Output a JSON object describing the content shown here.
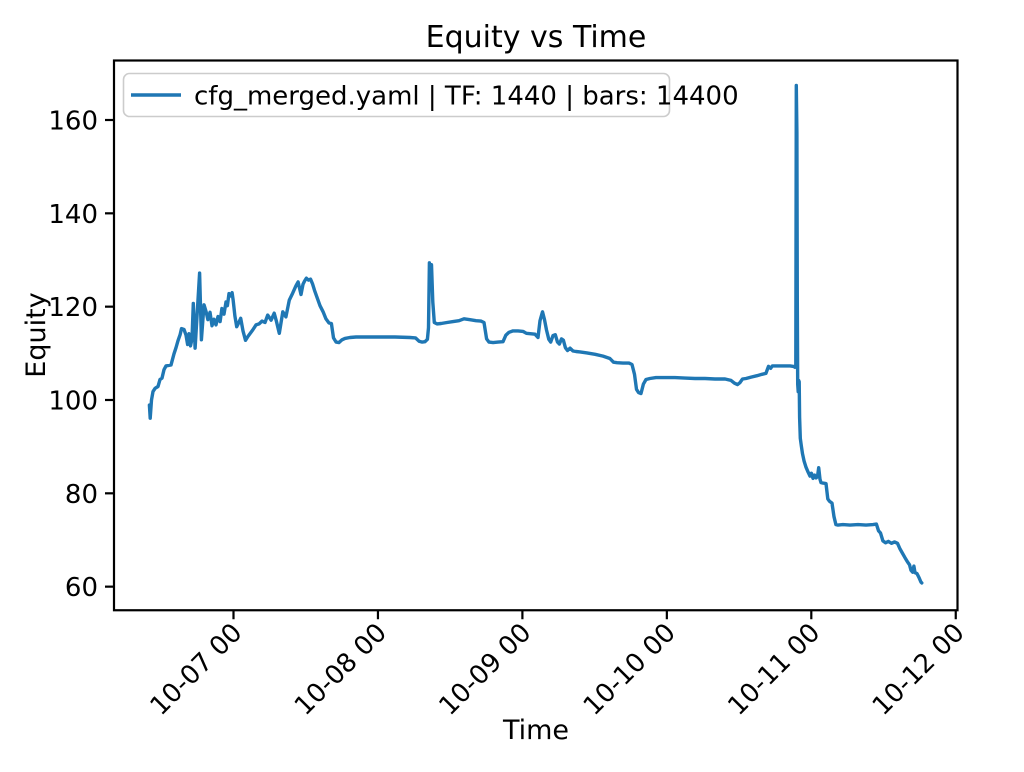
{
  "chart_data": {
    "type": "line",
    "title": "Equity vs Time",
    "xlabel": "Time",
    "ylabel": "Equity",
    "grid": false,
    "legend_position": "upper left",
    "line_color": "#1f77b4",
    "x_axis": {
      "unit": "days (1.0 = 10-07 00:00)",
      "tick_values": [
        1,
        2,
        3,
        4,
        5,
        6
      ],
      "tick_labels": [
        "10-07 00",
        "10-08 00",
        "10-09 00",
        "10-10 00",
        "10-11 00",
        "10-12 00"
      ],
      "lim": [
        0.173,
        6.012
      ]
    },
    "y_axis": {
      "tick_values": [
        60,
        80,
        100,
        120,
        140,
        160
      ],
      "lim": [
        55.0,
        172.8
      ]
    },
    "series": [
      {
        "name": "cfg_merged.yaml | TF: 1440 | bars: 14400",
        "color": "#1f77b4",
        "points": [
          [
            0.418,
            98.9
          ],
          [
            0.423,
            96.1
          ],
          [
            0.432,
            100.0
          ],
          [
            0.443,
            101.8
          ],
          [
            0.457,
            102.5
          ],
          [
            0.477,
            102.9
          ],
          [
            0.491,
            104.4
          ],
          [
            0.505,
            104.7
          ],
          [
            0.519,
            106.5
          ],
          [
            0.533,
            107.3
          ],
          [
            0.567,
            107.5
          ],
          [
            0.588,
            109.9
          ],
          [
            0.602,
            111.2
          ],
          [
            0.616,
            112.7
          ],
          [
            0.63,
            114.0
          ],
          [
            0.64,
            115.3
          ],
          [
            0.657,
            115.1
          ],
          [
            0.671,
            113.9
          ],
          [
            0.682,
            111.9
          ],
          [
            0.692,
            114.2
          ],
          [
            0.702,
            111.6
          ],
          [
            0.713,
            113.1
          ],
          [
            0.722,
            120.7
          ],
          [
            0.734,
            111.1
          ],
          [
            0.765,
            127.2
          ],
          [
            0.778,
            112.9
          ],
          [
            0.796,
            120.4
          ],
          [
            0.81,
            118.9
          ],
          [
            0.823,
            117.2
          ],
          [
            0.837,
            118.8
          ],
          [
            0.851,
            115.9
          ],
          [
            0.865,
            117.3
          ],
          [
            0.879,
            116.1
          ],
          [
            0.893,
            117.9
          ],
          [
            0.907,
            116.8
          ],
          [
            0.92,
            119.6
          ],
          [
            0.934,
            118.4
          ],
          [
            0.948,
            121.0
          ],
          [
            0.958,
            120.2
          ],
          [
            0.969,
            122.8
          ],
          [
            0.979,
            122.3
          ],
          [
            0.99,
            123.0
          ],
          [
            0.997,
            121.5
          ],
          [
            1.01,
            118.0
          ],
          [
            1.022,
            115.7
          ],
          [
            1.035,
            116.5
          ],
          [
            1.05,
            117.5
          ],
          [
            1.066,
            114.8
          ],
          [
            1.083,
            112.8
          ],
          [
            1.1,
            113.6
          ],
          [
            1.133,
            115.0
          ],
          [
            1.156,
            116.1
          ],
          [
            1.177,
            116.3
          ],
          [
            1.197,
            116.9
          ],
          [
            1.218,
            116.6
          ],
          [
            1.237,
            118.2
          ],
          [
            1.26,
            117.1
          ],
          [
            1.282,
            118.6
          ],
          [
            1.298,
            116.8
          ],
          [
            1.306,
            115.7
          ],
          [
            1.317,
            114.3
          ],
          [
            1.341,
            118.9
          ],
          [
            1.363,
            117.8
          ],
          [
            1.386,
            121.4
          ],
          [
            1.41,
            122.9
          ],
          [
            1.433,
            124.5
          ],
          [
            1.447,
            125.3
          ],
          [
            1.467,
            122.6
          ],
          [
            1.481,
            124.8
          ],
          [
            1.492,
            125.5
          ],
          [
            1.505,
            126.1
          ],
          [
            1.519,
            125.7
          ],
          [
            1.533,
            125.9
          ],
          [
            1.547,
            124.9
          ],
          [
            1.561,
            123.5
          ],
          [
            1.578,
            122.0
          ],
          [
            1.599,
            120.2
          ],
          [
            1.62,
            118.9
          ],
          [
            1.64,
            117.4
          ],
          [
            1.661,
            116.5
          ],
          [
            1.678,
            116.4
          ],
          [
            1.692,
            113.3
          ],
          [
            1.71,
            112.4
          ],
          [
            1.73,
            112.3
          ],
          [
            1.751,
            112.9
          ],
          [
            1.772,
            113.2
          ],
          [
            1.806,
            113.4
          ],
          [
            1.848,
            113.5
          ],
          [
            1.91,
            113.5
          ],
          [
            2.014,
            113.5
          ],
          [
            2.118,
            113.5
          ],
          [
            2.222,
            113.4
          ],
          [
            2.26,
            113.3
          ],
          [
            2.285,
            112.6
          ],
          [
            2.306,
            112.4
          ],
          [
            2.326,
            112.5
          ],
          [
            2.342,
            113.0
          ],
          [
            2.35,
            115.5
          ],
          [
            2.356,
            129.4
          ],
          [
            2.363,
            127.7
          ],
          [
            2.371,
            129.0
          ],
          [
            2.38,
            121.0
          ],
          [
            2.39,
            116.6
          ],
          [
            2.409,
            116.3
          ],
          [
            2.437,
            116.4
          ],
          [
            2.478,
            116.6
          ],
          [
            2.52,
            116.8
          ],
          [
            2.561,
            117.0
          ],
          [
            2.596,
            117.4
          ],
          [
            2.637,
            117.2
          ],
          [
            2.679,
            117.0
          ],
          [
            2.713,
            116.9
          ],
          [
            2.734,
            116.6
          ],
          [
            2.752,
            113.1
          ],
          [
            2.769,
            112.4
          ],
          [
            2.797,
            112.3
          ],
          [
            2.831,
            112.4
          ],
          [
            2.866,
            112.5
          ],
          [
            2.886,
            113.9
          ],
          [
            2.907,
            114.5
          ],
          [
            2.935,
            114.8
          ],
          [
            2.97,
            114.8
          ],
          [
            3.004,
            114.7
          ],
          [
            3.028,
            114.3
          ],
          [
            3.053,
            114.2
          ],
          [
            3.087,
            114.1
          ],
          [
            3.108,
            113.4
          ],
          [
            3.122,
            117.0
          ],
          [
            3.139,
            118.9
          ],
          [
            3.153,
            117.2
          ],
          [
            3.167,
            115.0
          ],
          [
            3.183,
            113.0
          ],
          [
            3.196,
            112.4
          ],
          [
            3.212,
            113.8
          ],
          [
            3.228,
            114.0
          ],
          [
            3.243,
            112.4
          ],
          [
            3.256,
            112.0
          ],
          [
            3.271,
            113.1
          ],
          [
            3.284,
            112.8
          ],
          [
            3.298,
            111.2
          ],
          [
            3.312,
            110.6
          ],
          [
            3.33,
            111.1
          ],
          [
            3.35,
            110.5
          ],
          [
            3.371,
            110.4
          ],
          [
            3.399,
            110.3
          ],
          [
            3.447,
            110.1
          ],
          [
            3.503,
            109.8
          ],
          [
            3.558,
            109.4
          ],
          [
            3.606,
            108.9
          ],
          [
            3.631,
            108.1
          ],
          [
            3.655,
            108.0
          ],
          [
            3.696,
            107.9
          ],
          [
            3.738,
            107.9
          ],
          [
            3.759,
            107.6
          ],
          [
            3.776,
            105.5
          ],
          [
            3.79,
            102.3
          ],
          [
            3.804,
            101.6
          ],
          [
            3.821,
            101.4
          ],
          [
            3.838,
            103.4
          ],
          [
            3.856,
            104.4
          ],
          [
            3.883,
            104.6
          ],
          [
            3.925,
            104.8
          ],
          [
            3.987,
            104.8
          ],
          [
            4.056,
            104.8
          ],
          [
            4.126,
            104.7
          ],
          [
            4.195,
            104.6
          ],
          [
            4.264,
            104.6
          ],
          [
            4.333,
            104.5
          ],
          [
            4.403,
            104.5
          ],
          [
            4.444,
            104.2
          ],
          [
            4.468,
            103.6
          ],
          [
            4.489,
            103.3
          ],
          [
            4.506,
            103.7
          ],
          [
            4.524,
            104.5
          ],
          [
            4.548,
            104.6
          ],
          [
            4.583,
            104.9
          ],
          [
            4.624,
            105.2
          ],
          [
            4.659,
            105.5
          ],
          [
            4.686,
            105.7
          ],
          [
            4.704,
            107.2
          ],
          [
            4.718,
            106.8
          ],
          [
            4.731,
            107.3
          ],
          [
            4.769,
            107.3
          ],
          [
            4.811,
            107.3
          ],
          [
            4.853,
            107.3
          ],
          [
            4.877,
            107.2
          ],
          [
            4.887,
            107.0
          ],
          [
            4.893,
            107.3
          ],
          [
            4.896,
            167.4
          ],
          [
            4.9,
            157.3
          ],
          [
            4.903,
            121.0
          ],
          [
            4.906,
            103.4
          ],
          [
            4.909,
            101.8
          ],
          [
            4.913,
            104.2
          ],
          [
            4.916,
            103.9
          ],
          [
            4.919,
            96.3
          ],
          [
            4.924,
            91.8
          ],
          [
            4.931,
            90.2
          ],
          [
            4.939,
            88.5
          ],
          [
            4.95,
            86.9
          ],
          [
            4.963,
            85.6
          ],
          [
            4.977,
            84.6
          ],
          [
            4.991,
            83.7
          ],
          [
            5.001,
            84.3
          ],
          [
            5.012,
            83.2
          ],
          [
            5.022,
            83.9
          ],
          [
            5.033,
            83.3
          ],
          [
            5.043,
            83.6
          ],
          [
            5.051,
            85.5
          ],
          [
            5.06,
            83.0
          ],
          [
            5.067,
            82.3
          ],
          [
            5.081,
            82.2
          ],
          [
            5.102,
            82.1
          ],
          [
            5.114,
            78.8
          ],
          [
            5.126,
            78.3
          ],
          [
            5.143,
            77.9
          ],
          [
            5.157,
            75.0
          ],
          [
            5.17,
            73.3
          ],
          [
            5.185,
            73.2
          ],
          [
            5.219,
            73.3
          ],
          [
            5.268,
            73.2
          ],
          [
            5.323,
            73.3
          ],
          [
            5.379,
            73.2
          ],
          [
            5.427,
            73.3
          ],
          [
            5.451,
            73.4
          ],
          [
            5.465,
            72.0
          ],
          [
            5.479,
            71.5
          ],
          [
            5.496,
            69.8
          ],
          [
            5.514,
            69.4
          ],
          [
            5.534,
            69.7
          ],
          [
            5.555,
            69.3
          ],
          [
            5.576,
            69.6
          ],
          [
            5.597,
            69.3
          ],
          [
            5.614,
            68.1
          ],
          [
            5.631,
            67.2
          ],
          [
            5.649,
            66.2
          ],
          [
            5.666,
            65.3
          ],
          [
            5.68,
            64.7
          ],
          [
            5.69,
            63.5
          ],
          [
            5.701,
            63.1
          ],
          [
            5.71,
            64.4
          ],
          [
            5.718,
            63.0
          ],
          [
            5.732,
            62.8
          ],
          [
            5.746,
            61.9
          ],
          [
            5.759,
            61.0
          ],
          [
            5.765,
            60.8
          ]
        ]
      }
    ]
  }
}
